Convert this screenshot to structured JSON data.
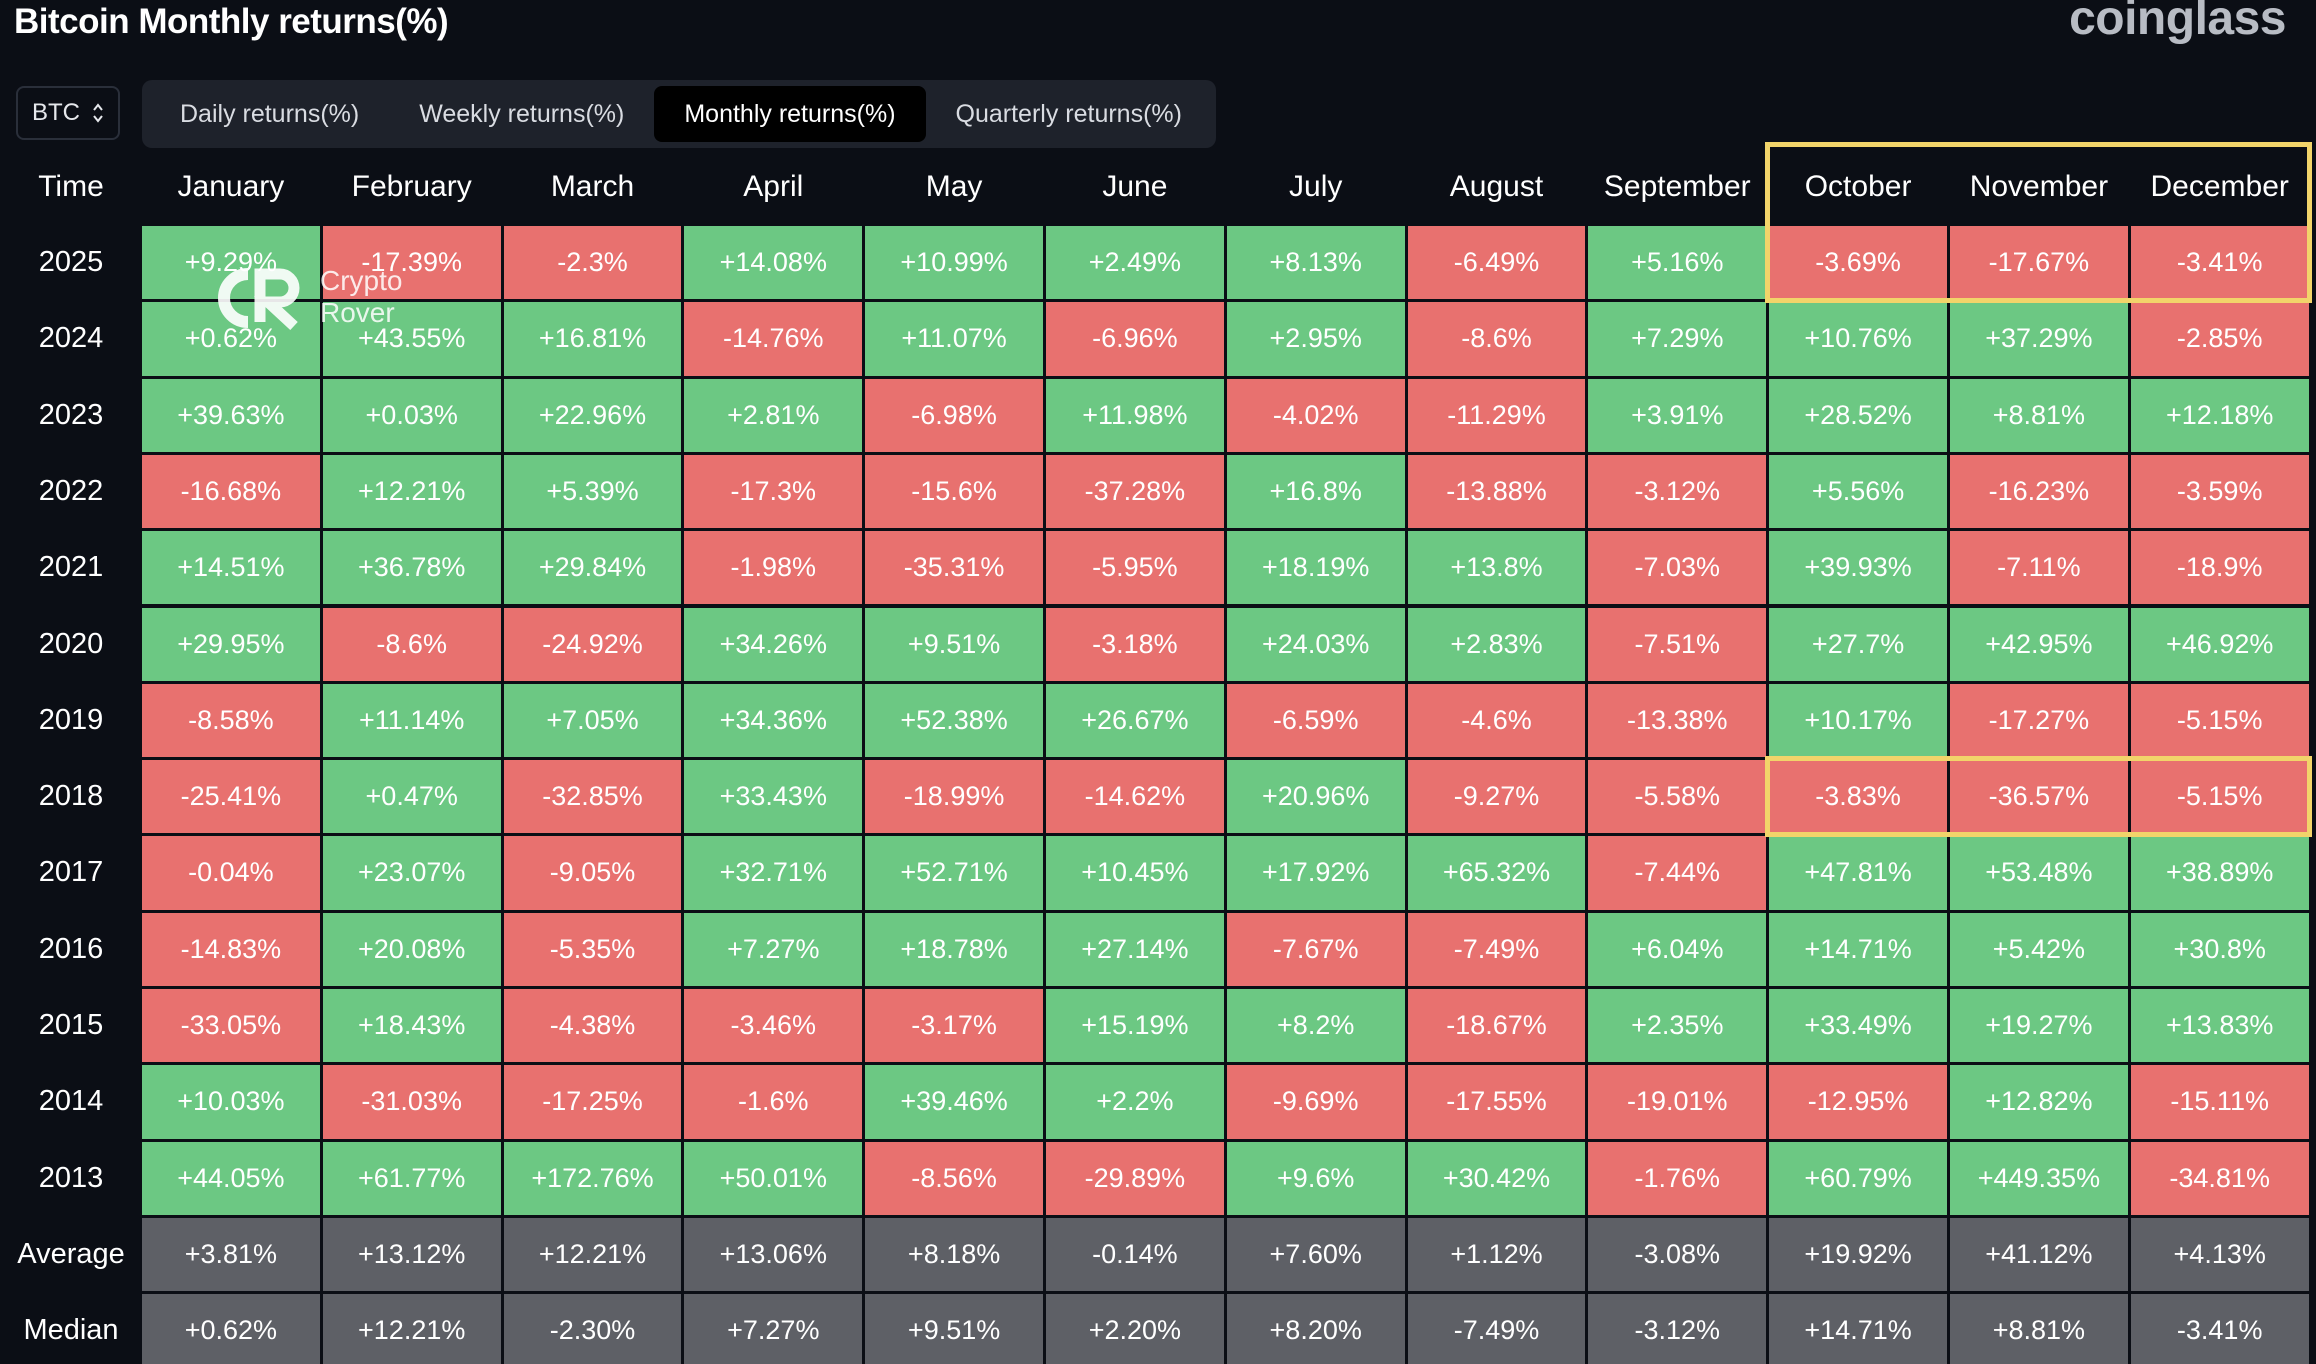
{
  "title": "Bitcoin Monthly returns(%)",
  "brand": "coinglass",
  "watermark": {
    "line1": "Crypto",
    "line2": "Rover"
  },
  "asset_selector": {
    "value": "BTC",
    "icon": "chevron-up-down-icon"
  },
  "tabs": [
    {
      "label": "Daily returns(%)",
      "active": false
    },
    {
      "label": "Weekly returns(%)",
      "active": false
    },
    {
      "label": "Monthly returns(%)",
      "active": true
    },
    {
      "label": "Quarterly returns(%)",
      "active": false
    }
  ],
  "table": {
    "corner_label": "Time",
    "months": [
      "January",
      "February",
      "March",
      "April",
      "May",
      "June",
      "July",
      "August",
      "September",
      "October",
      "November",
      "December"
    ],
    "rows": [
      {
        "label": "2025",
        "values": [
          "+9.29%",
          "-17.39%",
          "-2.3%",
          "+14.08%",
          "+10.99%",
          "+2.49%",
          "+8.13%",
          "-6.49%",
          "+5.16%",
          "-3.69%",
          "-17.67%",
          "-3.41%"
        ]
      },
      {
        "label": "2024",
        "values": [
          "+0.62%",
          "+43.55%",
          "+16.81%",
          "-14.76%",
          "+11.07%",
          "-6.96%",
          "+2.95%",
          "-8.6%",
          "+7.29%",
          "+10.76%",
          "+37.29%",
          "-2.85%"
        ]
      },
      {
        "label": "2023",
        "values": [
          "+39.63%",
          "+0.03%",
          "+22.96%",
          "+2.81%",
          "-6.98%",
          "+11.98%",
          "-4.02%",
          "-11.29%",
          "+3.91%",
          "+28.52%",
          "+8.81%",
          "+12.18%"
        ]
      },
      {
        "label": "2022",
        "values": [
          "-16.68%",
          "+12.21%",
          "+5.39%",
          "-17.3%",
          "-15.6%",
          "-37.28%",
          "+16.8%",
          "-13.88%",
          "-3.12%",
          "+5.56%",
          "-16.23%",
          "-3.59%"
        ]
      },
      {
        "label": "2021",
        "values": [
          "+14.51%",
          "+36.78%",
          "+29.84%",
          "-1.98%",
          "-35.31%",
          "-5.95%",
          "+18.19%",
          "+13.8%",
          "-7.03%",
          "+39.93%",
          "-7.11%",
          "-18.9%"
        ]
      },
      {
        "label": "2020",
        "values": [
          "+29.95%",
          "-8.6%",
          "-24.92%",
          "+34.26%",
          "+9.51%",
          "-3.18%",
          "+24.03%",
          "+2.83%",
          "-7.51%",
          "+27.7%",
          "+42.95%",
          "+46.92%"
        ]
      },
      {
        "label": "2019",
        "values": [
          "-8.58%",
          "+11.14%",
          "+7.05%",
          "+34.36%",
          "+52.38%",
          "+26.67%",
          "-6.59%",
          "-4.6%",
          "-13.38%",
          "+10.17%",
          "-17.27%",
          "-5.15%"
        ]
      },
      {
        "label": "2018",
        "values": [
          "-25.41%",
          "+0.47%",
          "-32.85%",
          "+33.43%",
          "-18.99%",
          "-14.62%",
          "+20.96%",
          "-9.27%",
          "-5.58%",
          "-3.83%",
          "-36.57%",
          "-5.15%"
        ]
      },
      {
        "label": "2017",
        "values": [
          "-0.04%",
          "+23.07%",
          "-9.05%",
          "+32.71%",
          "+52.71%",
          "+10.45%",
          "+17.92%",
          "+65.32%",
          "-7.44%",
          "+47.81%",
          "+53.48%",
          "+38.89%"
        ]
      },
      {
        "label": "2016",
        "values": [
          "-14.83%",
          "+20.08%",
          "-5.35%",
          "+7.27%",
          "+18.78%",
          "+27.14%",
          "-7.67%",
          "-7.49%",
          "+6.04%",
          "+14.71%",
          "+5.42%",
          "+30.8%"
        ]
      },
      {
        "label": "2015",
        "values": [
          "-33.05%",
          "+18.43%",
          "-4.38%",
          "-3.46%",
          "-3.17%",
          "+15.19%",
          "+8.2%",
          "-18.67%",
          "+2.35%",
          "+33.49%",
          "+19.27%",
          "+13.83%"
        ]
      },
      {
        "label": "2014",
        "values": [
          "+10.03%",
          "-31.03%",
          "-17.25%",
          "-1.6%",
          "+39.46%",
          "+2.2%",
          "-9.69%",
          "-17.55%",
          "-19.01%",
          "-12.95%",
          "+12.82%",
          "-15.11%"
        ]
      },
      {
        "label": "2013",
        "values": [
          "+44.05%",
          "+61.77%",
          "+172.76%",
          "+50.01%",
          "-8.56%",
          "-29.89%",
          "+9.6%",
          "+30.42%",
          "-1.76%",
          "+60.79%",
          "+449.35%",
          "-34.81%"
        ]
      }
    ],
    "summary_rows": [
      {
        "label": "Average",
        "values": [
          "+3.81%",
          "+13.12%",
          "+12.21%",
          "+13.06%",
          "+8.18%",
          "-0.14%",
          "+7.60%",
          "+1.12%",
          "-3.08%",
          "+19.92%",
          "+41.12%",
          "+4.13%"
        ]
      },
      {
        "label": "Median",
        "values": [
          "+0.62%",
          "+12.21%",
          "-2.30%",
          "+7.27%",
          "+9.51%",
          "+2.20%",
          "+8.20%",
          "-7.49%",
          "-3.12%",
          "+14.71%",
          "+8.81%",
          "-3.41%"
        ]
      }
    ]
  },
  "highlights": [
    {
      "rows": [
        "header",
        "2025"
      ],
      "months": [
        "October",
        "November",
        "December"
      ]
    },
    {
      "rows": [
        "2018"
      ],
      "months": [
        "October",
        "November",
        "December"
      ]
    }
  ],
  "colors": {
    "background": "#0b0e15",
    "positive": "#6cc883",
    "negative": "#e8716f",
    "summary": "#5e6066",
    "highlight": "#f2d46a"
  }
}
